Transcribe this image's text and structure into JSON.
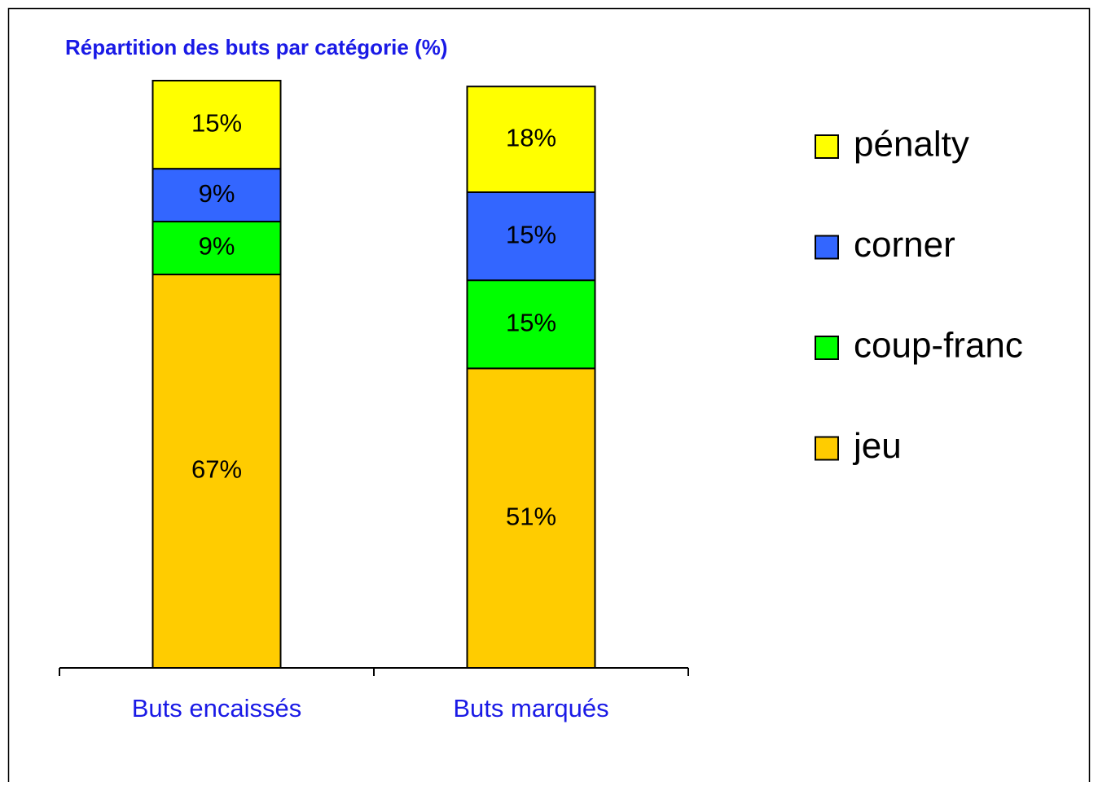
{
  "chart_data": {
    "type": "stacked_bar",
    "title": "Répartition des buts par catégorie (%)",
    "categories": [
      "Buts encaissés",
      "Buts marqués"
    ],
    "series": [
      {
        "name": "jeu",
        "color": "#ffcc00",
        "values": [
          67,
          51
        ],
        "value_labels": [
          "67%",
          "51%"
        ]
      },
      {
        "name": "coup-franc",
        "color": "#00ff00",
        "values": [
          9,
          15
        ],
        "value_labels": [
          "9%",
          "15%"
        ]
      },
      {
        "name": "corner",
        "color": "#3366ff",
        "values": [
          9,
          15
        ],
        "value_labels": [
          "9%",
          "15%"
        ]
      },
      {
        "name": "pénalty",
        "color": "#ffff00",
        "values": [
          15,
          18
        ],
        "value_labels": [
          "15%",
          "18%"
        ]
      }
    ],
    "ylim": [
      0,
      100
    ],
    "legend": "right"
  }
}
